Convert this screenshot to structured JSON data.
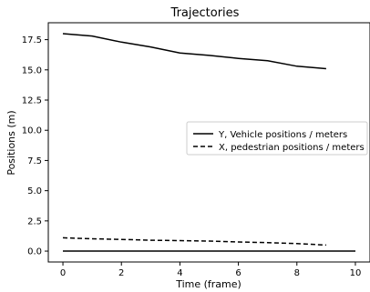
{
  "chart_data": {
    "type": "line",
    "title": "Trajectories",
    "xlabel": "Time (frame)",
    "ylabel": "Positions (m)",
    "xlim": [
      -0.5,
      10.5
    ],
    "ylim": [
      -0.9,
      18.9
    ],
    "xticks": [
      0,
      2,
      4,
      6,
      8,
      10
    ],
    "xtick_labels": [
      "0",
      "2",
      "4",
      "6",
      "8",
      "10"
    ],
    "yticks": [
      0,
      2.5,
      5,
      7.5,
      10,
      12.5,
      15,
      17.5
    ],
    "ytick_labels": [
      "0.0",
      "2.5",
      "5.0",
      "7.5",
      "10.0",
      "12.5",
      "15.0",
      "17.5"
    ],
    "grid": false,
    "legend_position": "center-right",
    "series": [
      {
        "name": "Y, Vehicle positions / meters",
        "style": "solid",
        "color": "#000000",
        "x": [
          0,
          1,
          2,
          3,
          4,
          5,
          6,
          7,
          8,
          9
        ],
        "y": [
          18.0,
          17.8,
          17.3,
          16.9,
          16.4,
          16.2,
          15.95,
          15.75,
          15.3,
          15.1
        ]
      },
      {
        "name": "X, pedestrian positions / meters",
        "style": "dashed",
        "color": "#000000",
        "x": [
          0,
          1,
          2,
          3,
          4,
          5,
          6,
          7,
          8,
          9
        ],
        "y": [
          1.1,
          1.02,
          0.97,
          0.9,
          0.87,
          0.83,
          0.76,
          0.7,
          0.62,
          0.5
        ]
      },
      {
        "style": "solid",
        "color": "#000000",
        "x": [
          0,
          10
        ],
        "y": [
          0,
          0
        ]
      }
    ]
  }
}
